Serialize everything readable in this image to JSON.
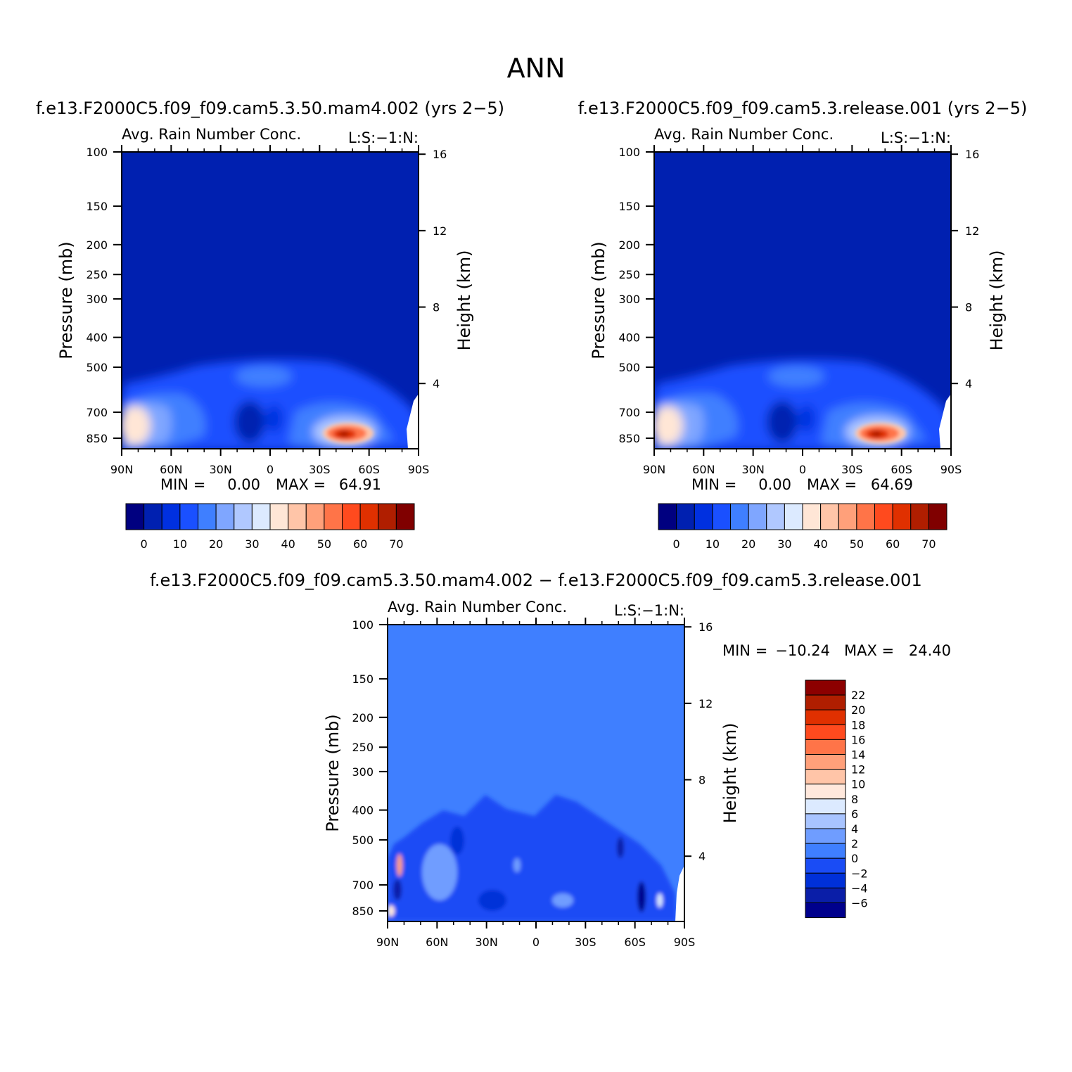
{
  "page_title": "ANN",
  "colors": {
    "abs_levels": [
      "#000080",
      "#0020b0",
      "#0030e0",
      "#1a50ff",
      "#3f7fff",
      "#7fa6ff",
      "#b0c8ff",
      "#dceaff",
      "#ffe6d6",
      "#ffc5a8",
      "#ffa07a",
      "#ff7448",
      "#ff4a1e",
      "#e03000",
      "#b01e00",
      "#800000"
    ],
    "diff_levels": [
      "#00008c",
      "#0a1ea8",
      "#0030d8",
      "#1a4cf5",
      "#3f7fff",
      "#6f9dff",
      "#a8c4ff",
      "#dceaff",
      "#ffe8dc",
      "#ffc5a8",
      "#ffa07a",
      "#ff7448",
      "#ff4a1e",
      "#e03000",
      "#b01e00",
      "#8c0000"
    ]
  },
  "chart_data": [
    {
      "type": "heatmap",
      "id": "panel-1",
      "title": "f.e13.F2000C5.f09_f09.cam5.3.50.mam4.002 (yrs 2−5)",
      "subtitle_left": "Avg. Rain Number Conc.",
      "subtitle_right": "L:S:−1:N:",
      "ylabel": "Pressure (mb)",
      "ylabel_right": "Height (km)",
      "x_ticks": [
        "90N",
        "60N",
        "30N",
        "0",
        "30S",
        "60S",
        "90S"
      ],
      "y_ticks": [
        "100",
        "150",
        "200",
        "250",
        "300",
        "400",
        "500",
        "700",
        "850"
      ],
      "y_ticks_right": [
        "16",
        "12",
        "8",
        "4"
      ],
      "min_label": "MIN =",
      "min_value": "0.00",
      "max_label": "MAX =",
      "max_value": "64.91",
      "colorbar_labels": [
        "0",
        "10",
        "20",
        "30",
        "40",
        "50",
        "60",
        "70"
      ]
    },
    {
      "type": "heatmap",
      "id": "panel-2",
      "title": "f.e13.F2000C5.f09_f09.cam5.3.release.001 (yrs 2−5)",
      "subtitle_left": "Avg. Rain Number Conc.",
      "subtitle_right": "L:S:−1:N:",
      "ylabel": "Pressure (mb)",
      "ylabel_right": "Height (km)",
      "x_ticks": [
        "90N",
        "60N",
        "30N",
        "0",
        "30S",
        "60S",
        "90S"
      ],
      "y_ticks": [
        "100",
        "150",
        "200",
        "250",
        "300",
        "400",
        "500",
        "700",
        "850"
      ],
      "y_ticks_right": [
        "16",
        "12",
        "8",
        "4"
      ],
      "min_label": "MIN =",
      "min_value": "0.00",
      "max_label": "MAX =",
      "max_value": "64.69",
      "colorbar_labels": [
        "0",
        "10",
        "20",
        "30",
        "40",
        "50",
        "60",
        "70"
      ]
    },
    {
      "type": "heatmap",
      "id": "panel-diff",
      "title": "f.e13.F2000C5.f09_f09.cam5.3.50.mam4.002 − f.e13.F2000C5.f09_f09.cam5.3.release.001",
      "subtitle_left": "Avg. Rain Number Conc.",
      "subtitle_right": "L:S:−1:N:",
      "ylabel": "Pressure (mb)",
      "ylabel_right": "Height (km)",
      "x_ticks": [
        "90N",
        "60N",
        "30N",
        "0",
        "30S",
        "60S",
        "90S"
      ],
      "y_ticks": [
        "100",
        "150",
        "200",
        "250",
        "300",
        "400",
        "500",
        "700",
        "850"
      ],
      "y_ticks_right": [
        "16",
        "12",
        "8",
        "4"
      ],
      "min_label": "MIN =",
      "min_value": "−10.24",
      "max_label": "MAX =",
      "max_value": "24.40",
      "colorbar_labels": [
        "22",
        "20",
        "18",
        "16",
        "14",
        "12",
        "10",
        "8",
        "6",
        "4",
        "2",
        "0",
        "−2",
        "−4",
        "−6"
      ]
    }
  ]
}
